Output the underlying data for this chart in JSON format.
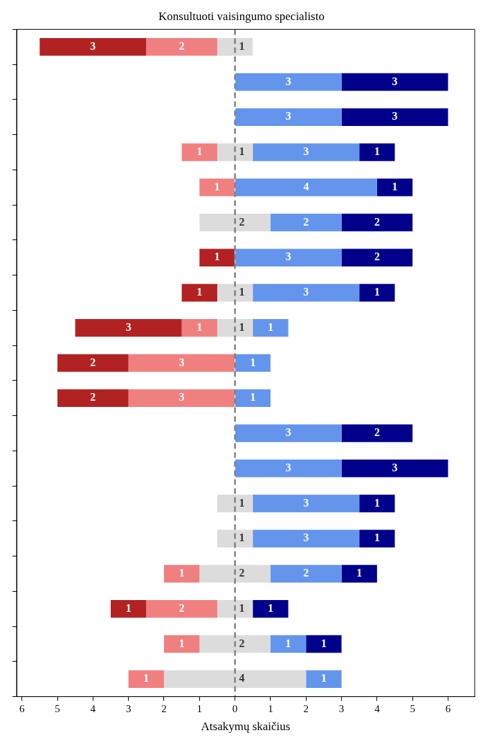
{
  "chart_data": {
    "type": "bar",
    "orientation": "horizontal",
    "title": "Konsultuoti vaisingumo specialisto",
    "xlabel": "Atsakymų skaičius",
    "categories": [
      null,
      null,
      null,
      null,
      null,
      null,
      null,
      null,
      null,
      null,
      null,
      null,
      null,
      null,
      null,
      null,
      null,
      null,
      null
    ],
    "series": [
      {
        "color": "#b22222",
        "base": [
          -5.5,
          null,
          null,
          null,
          null,
          null,
          -1,
          -1.5,
          -4.5,
          -5,
          -5,
          null,
          null,
          null,
          null,
          null,
          -3.5,
          null,
          null
        ],
        "values": [
          3,
          null,
          null,
          null,
          null,
          null,
          1,
          1,
          3,
          2,
          2,
          null,
          null,
          null,
          null,
          null,
          1,
          null,
          null
        ]
      },
      {
        "color": "#f08080",
        "base": [
          -2.5,
          null,
          null,
          -1.5,
          -1,
          null,
          null,
          null,
          -1.5,
          -3,
          -3,
          null,
          null,
          null,
          null,
          -2,
          -2.5,
          -2,
          -3
        ],
        "values": [
          2,
          null,
          null,
          1,
          1,
          null,
          null,
          null,
          1,
          3,
          3,
          null,
          null,
          null,
          null,
          1,
          2,
          1,
          1
        ]
      },
      {
        "color": "#dcdcdc",
        "base": [
          -0.5,
          null,
          null,
          -0.5,
          null,
          -1,
          null,
          -0.5,
          -0.5,
          null,
          null,
          null,
          null,
          -0.5,
          -0.5,
          -1,
          -0.5,
          -1,
          -2
        ],
        "values": [
          1,
          null,
          null,
          1,
          null,
          2,
          null,
          1,
          1,
          null,
          null,
          null,
          null,
          1,
          1,
          2,
          1,
          2,
          4
        ]
      },
      {
        "color": "#6495ed",
        "base": [
          null,
          0,
          0,
          0.5,
          0,
          1,
          0,
          0.5,
          0.5,
          0,
          0,
          0,
          0,
          0.5,
          0.5,
          1,
          null,
          1,
          2
        ],
        "values": [
          null,
          3,
          3,
          3,
          4,
          2,
          3,
          3,
          1,
          1,
          1,
          3,
          3,
          3,
          3,
          2,
          null,
          1,
          1
        ]
      },
      {
        "color": "#00008b",
        "base": [
          null,
          3,
          3,
          3.5,
          4,
          3,
          3,
          3.5,
          null,
          null,
          null,
          3,
          3,
          3.5,
          3.5,
          3,
          0.5,
          2,
          null
        ],
        "values": [
          null,
          3,
          3,
          1,
          1,
          2,
          2,
          1,
          null,
          null,
          null,
          2,
          3,
          1,
          1,
          1,
          1,
          1,
          null
        ]
      }
    ],
    "xlim": [
      -6.15,
      6.75
    ],
    "xticks": [
      {
        "value": -6,
        "label": "6"
      },
      {
        "value": -5,
        "label": "5"
      },
      {
        "value": -4,
        "label": "4"
      },
      {
        "value": -3,
        "label": "3"
      },
      {
        "value": -2,
        "label": "2"
      },
      {
        "value": -1,
        "label": "1"
      },
      0,
      1,
      2,
      3,
      4,
      5,
      6
    ],
    "ref_lines": [
      {
        "axis": "x",
        "value": 0,
        "color": "#808080",
        "line_style": "dashed"
      }
    ],
    "data_labels": true,
    "tick_labels": "x",
    "grid": false,
    "legend": false
  }
}
